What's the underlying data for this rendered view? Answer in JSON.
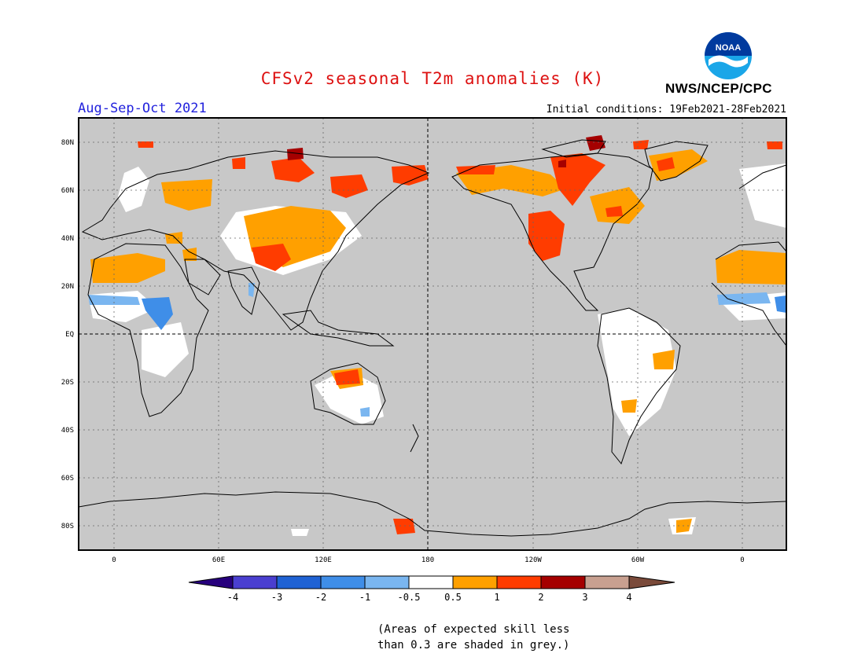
{
  "title": "CFSv2 seasonal T2m anomalies (K)",
  "period": "Aug-Sep-Oct 2021",
  "initial_conditions": "Initial conditions: 19Feb2021-28Feb2021",
  "agency": "NWS/NCEP/CPC",
  "logo_text": "NOAA",
  "skill_note": [
    "(Areas of expected skill less",
    "than 0.3 are shaded in grey.)"
  ],
  "map": {
    "lat_labels": [
      "80N",
      "60N",
      "40N",
      "20N",
      "EQ",
      "20S",
      "40S",
      "60S",
      "80S"
    ],
    "lon_labels": [
      "0",
      "60E",
      "120E",
      "180",
      "120W",
      "60W",
      "0"
    ],
    "background_color": "#c8c8c8",
    "coastline_color": "#000000"
  },
  "colorbar": {
    "labels": [
      "-4",
      "-3",
      "-2",
      "-1",
      "-0.5",
      "0.5",
      "1",
      "2",
      "3",
      "4"
    ],
    "colors": [
      "#27007d",
      "#4a3fd0",
      "#1f62d4",
      "#3f8ee8",
      "#7ab6f0",
      "#ffffff",
      "#ffa000",
      "#ff3c00",
      "#a50000",
      "#c8a090",
      "#7a4a3a"
    ]
  },
  "chart_data": {
    "type": "heatmap",
    "variable": "T2m anomaly",
    "units": "K",
    "color_levels": [
      -4,
      -3,
      -2,
      -1,
      -0.5,
      0.5,
      1,
      2,
      3,
      4
    ],
    "regions": [
      {
        "area": "Western North America",
        "anomaly_class": "1 to 2"
      },
      {
        "area": "Alaska / Yukon",
        "anomaly_class": "0.5 to 2"
      },
      {
        "area": "Eastern Canada / Great Lakes",
        "anomaly_class": "0.5 to 1"
      },
      {
        "area": "Greenland",
        "anomaly_class": "0.5 to 2"
      },
      {
        "area": "Arctic Canada",
        "anomaly_class": "2 to 3"
      },
      {
        "area": "Northern Siberia",
        "anomaly_class": "1 to 3"
      },
      {
        "area": "Central Asia / Mongolia",
        "anomaly_class": "0.5 to 2"
      },
      {
        "area": "Sahara",
        "anomaly_class": "0.5 to 1"
      },
      {
        "area": "Sahel",
        "anomaly_class": "-1 to -0.5"
      },
      {
        "area": "Northern Australia",
        "anomaly_class": "1 to 2"
      },
      {
        "area": "Eastern Brazil",
        "anomaly_class": "0.5 to 1"
      },
      {
        "area": "Antarctic Peninsula",
        "anomaly_class": "0.5 to 1"
      }
    ]
  }
}
